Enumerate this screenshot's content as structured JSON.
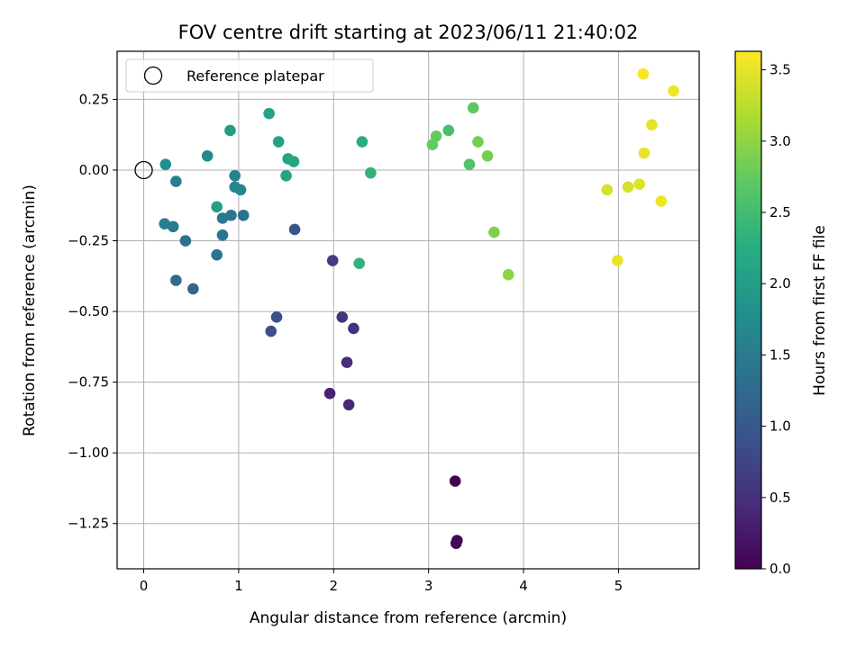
{
  "chart_data": {
    "type": "scatter",
    "title": "FOV centre drift starting at 2023/06/11 21:40:02",
    "xlabel": "Angular distance from reference (arcmin)",
    "ylabel": "Rotation from reference (arcmin)",
    "xlim": [
      -0.28,
      5.85
    ],
    "ylim": [
      -1.41,
      0.42
    ],
    "xticks": [
      0,
      1,
      2,
      3,
      4,
      5
    ],
    "yticks": [
      0.25,
      0.0,
      -0.25,
      -0.5,
      -0.75,
      -1.0,
      -1.25
    ],
    "xtick_labels": [
      "0",
      "1",
      "2",
      "3",
      "4",
      "5"
    ],
    "ytick_labels": [
      "0.25",
      "0.00",
      "−0.25",
      "−0.50",
      "−0.75",
      "−1.00",
      "−1.25"
    ],
    "grid": true,
    "legend": {
      "placement": "top-left",
      "entries": [
        {
          "label": "Reference platepar",
          "marker": "open-circle"
        }
      ]
    },
    "reference_point": {
      "x": 0.0,
      "y": 0.0
    },
    "colorbar": {
      "label": "Hours from first FF file",
      "range": [
        0.0,
        3.63
      ],
      "ticks": [
        0.0,
        0.5,
        1.0,
        1.5,
        2.0,
        2.5,
        3.0,
        3.5
      ],
      "tick_labels": [
        "0.0",
        "0.5",
        "1.0",
        "1.5",
        "2.0",
        "2.5",
        "3.0",
        "3.5"
      ],
      "colormap": "viridis"
    },
    "series": [
      {
        "x": [
          3.28,
          3.3,
          3.29,
          1.96,
          2.16,
          2.14,
          2.21,
          2.09,
          1.99,
          1.34,
          1.4,
          1.59,
          0.52,
          0.34,
          0.44,
          0.77,
          0.83,
          0.83,
          0.92,
          1.05,
          0.31,
          0.22,
          0.34,
          0.96,
          0.96,
          1.02,
          0.67,
          0.23,
          0.77,
          0.91,
          1.32,
          1.42,
          1.52,
          1.58,
          1.5,
          2.3,
          2.39,
          2.27,
          3.04,
          3.08,
          3.21,
          3.43,
          3.52,
          3.62,
          3.47,
          3.69,
          3.84,
          4.88,
          5.1,
          5.22,
          5.27,
          5.26,
          5.35,
          5.45,
          5.58,
          4.99
        ],
        "y": [
          -1.1,
          -1.31,
          -1.32,
          -0.79,
          -0.83,
          -0.68,
          -0.56,
          -0.52,
          -0.32,
          -0.57,
          -0.52,
          -0.21,
          -0.42,
          -0.39,
          -0.25,
          -0.3,
          -0.23,
          -0.17,
          -0.16,
          -0.16,
          -0.2,
          -0.19,
          -0.04,
          -0.02,
          -0.06,
          -0.07,
          0.05,
          0.02,
          -0.13,
          0.14,
          0.2,
          0.1,
          0.04,
          0.03,
          -0.02,
          0.1,
          -0.01,
          -0.33,
          0.09,
          0.12,
          0.14,
          0.02,
          0.1,
          0.05,
          0.22,
          -0.22,
          -0.37,
          -0.07,
          -0.06,
          -0.05,
          0.06,
          0.34,
          0.16,
          -0.11,
          0.28,
          -0.32
        ],
        "c": [
          0.0,
          0.03,
          0.06,
          0.35,
          0.4,
          0.45,
          0.5,
          0.55,
          0.62,
          0.85,
          0.9,
          0.95,
          1.2,
          1.25,
          1.3,
          1.35,
          1.4,
          1.45,
          1.4,
          1.35,
          1.5,
          1.55,
          1.55,
          1.6,
          1.65,
          1.65,
          1.7,
          1.75,
          2.0,
          2.0,
          2.1,
          2.05,
          2.1,
          2.15,
          2.1,
          2.25,
          2.35,
          2.35,
          2.75,
          2.75,
          2.55,
          2.6,
          2.85,
          2.85,
          2.7,
          2.9,
          3.0,
          3.4,
          3.4,
          3.45,
          3.5,
          3.6,
          3.5,
          3.55,
          3.55,
          3.5
        ]
      }
    ]
  }
}
